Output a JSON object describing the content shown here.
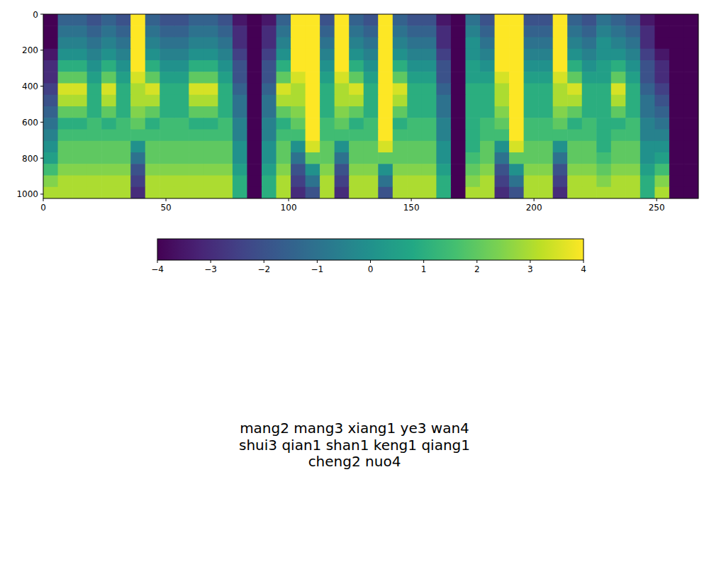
{
  "chart_data": {
    "type": "heatmap",
    "xlim": [
      0,
      267
    ],
    "ylim": [
      1024,
      0
    ],
    "xticks": [
      0,
      50,
      100,
      150,
      200,
      250
    ],
    "yticks": [
      0,
      200,
      400,
      600,
      800,
      1000
    ],
    "cells": [
      [
        -4,
        -1.5,
        -1.5,
        -2,
        -1.5,
        -2,
        4,
        -1.5,
        -2,
        -2,
        -1.5,
        -1.5,
        -2,
        -3.5,
        -4,
        -3.5,
        -1.5,
        4,
        4,
        -2,
        4,
        -1.5,
        -2,
        4,
        -1.5,
        -2,
        -2,
        -3.5,
        -4,
        -1,
        -2,
        4,
        4,
        -2,
        -2,
        4,
        -1.5,
        -2,
        -1,
        -1.5,
        -2,
        -3.5,
        -4,
        -4,
        -4
      ],
      [
        -4,
        -1,
        -1,
        -1.5,
        -1,
        -1.5,
        4,
        -1,
        -1.5,
        -1.5,
        -1,
        -1,
        -1.5,
        -3,
        -4,
        -3,
        -1,
        4,
        4,
        -1.5,
        4,
        -1,
        -1.5,
        4,
        -1,
        -1.5,
        -1.5,
        -3,
        -4,
        -0.5,
        -1.5,
        4,
        4,
        -1.5,
        -1.5,
        4,
        -1,
        -1.5,
        -0.5,
        -1,
        -1.5,
        -3,
        -4,
        -4,
        -4
      ],
      [
        -4,
        -0.5,
        -0.5,
        -1,
        -0.5,
        -1,
        4,
        -0.5,
        -1,
        -1,
        -0.5,
        -0.5,
        -1,
        -3,
        -4,
        -3,
        -0.5,
        4,
        4,
        -1,
        4,
        -0.5,
        -1,
        4,
        -0.5,
        -1,
        -1,
        -3,
        -4,
        0,
        -1,
        4,
        4,
        -1,
        -1,
        4,
        -0.5,
        -1,
        0,
        -0.5,
        -1,
        -3,
        -4,
        -4,
        -4
      ],
      [
        -3.5,
        0,
        0,
        -0.5,
        0,
        -0.5,
        4,
        0,
        -0.5,
        -0.5,
        0,
        0,
        -0.5,
        -2.5,
        -4,
        -2.5,
        0,
        4,
        4,
        -0.5,
        4,
        0,
        -0.5,
        4,
        0,
        -0.5,
        -0.5,
        -2.5,
        -4,
        0,
        -0.5,
        4,
        4,
        -0.5,
        -0.5,
        4,
        0,
        -0.5,
        0,
        0,
        -0.5,
        -2.5,
        -3.5,
        -4,
        -4
      ],
      [
        -3,
        1,
        1,
        0,
        1,
        0,
        4,
        1,
        0,
        0,
        1,
        1,
        0,
        -2,
        -4,
        -2,
        1,
        4,
        4,
        0,
        4,
        1,
        0,
        4,
        1,
        0,
        0,
        -2,
        -4,
        0.5,
        0,
        4,
        4,
        0,
        0,
        4,
        1,
        0,
        0.5,
        1,
        0,
        -2,
        -3,
        -4,
        -4
      ],
      [
        -3,
        2,
        2,
        0.5,
        2,
        0.5,
        3.5,
        2,
        0.5,
        0.5,
        2,
        2,
        0.5,
        -2,
        -4,
        -2,
        2,
        3.5,
        4,
        0.5,
        3.5,
        2,
        0.5,
        4,
        2,
        0.5,
        0.5,
        -2,
        -4,
        0.5,
        0.5,
        3.5,
        4,
        0.5,
        0.5,
        3.5,
        2,
        0.5,
        0.5,
        2,
        0.5,
        -2,
        -3,
        -4,
        -4
      ],
      [
        -2.5,
        3.5,
        3.5,
        1,
        3.5,
        1,
        3,
        3.5,
        1,
        1,
        3.5,
        3.5,
        1,
        -1.5,
        -4,
        -1.5,
        3.5,
        3,
        4,
        1,
        3,
        3.5,
        1,
        4,
        3.5,
        1,
        1,
        -1.5,
        -4,
        1,
        1,
        3,
        4,
        1,
        1,
        3,
        3.5,
        1,
        1,
        3.5,
        1,
        -1.5,
        -2.5,
        -4,
        -4
      ],
      [
        -2,
        3,
        3,
        1,
        3,
        1,
        3,
        3,
        1,
        1,
        3,
        3,
        1,
        -1,
        -4,
        -1,
        3,
        3,
        4,
        1,
        3,
        3,
        1,
        4,
        3,
        1,
        1,
        -1,
        -4,
        1,
        1,
        3,
        4,
        1,
        1,
        3,
        3,
        1,
        1,
        3,
        1,
        -1,
        -2,
        -4,
        -4
      ],
      [
        -1.5,
        2,
        2,
        1,
        2,
        1,
        2.5,
        2,
        1,
        1,
        2,
        2,
        1,
        -1,
        -4,
        -1,
        2,
        2.5,
        4,
        1,
        2.5,
        2,
        1,
        4,
        2,
        1,
        1,
        -1,
        -4,
        1,
        1,
        2.5,
        4,
        1,
        1,
        2.5,
        2,
        1,
        1,
        2,
        1,
        -1,
        -1.5,
        -4,
        -4
      ],
      [
        -1,
        1,
        1,
        1.5,
        1,
        1.5,
        2,
        1,
        1.5,
        1.5,
        1,
        1,
        1.5,
        -0.5,
        -4,
        -0.5,
        1,
        2,
        4,
        1.5,
        2,
        1,
        1.5,
        4,
        1,
        1.5,
        1.5,
        -0.5,
        -4,
        1,
        1.5,
        2,
        4,
        1.5,
        1.5,
        2,
        1,
        1.5,
        1,
        1,
        1.5,
        -0.5,
        -1,
        -4,
        -4
      ],
      [
        -0.5,
        1.5,
        1.5,
        1.5,
        1.5,
        1.5,
        1.5,
        1.5,
        1.5,
        1.5,
        1.5,
        1.5,
        1.5,
        -0.5,
        -4,
        -0.5,
        1.5,
        1.5,
        4,
        1.5,
        1.5,
        1.5,
        1.5,
        4,
        1.5,
        1.5,
        1.5,
        -0.5,
        -4,
        1,
        1.5,
        1.5,
        4,
        1.5,
        1.5,
        1.5,
        1.5,
        1.5,
        1,
        1.5,
        1.5,
        -0.5,
        -0.5,
        -4,
        -4
      ],
      [
        0,
        2,
        2,
        2,
        2,
        2,
        0,
        2,
        2,
        2,
        2,
        2,
        2,
        0,
        -4,
        0,
        2,
        0,
        3.5,
        2,
        0,
        2,
        2,
        3.5,
        2,
        2,
        2,
        0,
        -4,
        1,
        2,
        0,
        3.5,
        2,
        2,
        0,
        2,
        2,
        1,
        2,
        2,
        0,
        0,
        -4,
        -4
      ],
      [
        0.5,
        2,
        2,
        2,
        2,
        2,
        -1,
        2,
        2,
        2,
        2,
        2,
        2,
        0,
        -4,
        0,
        2,
        -1,
        2,
        2,
        -1,
        2,
        2,
        2,
        2,
        2,
        2,
        0,
        -4,
        1.5,
        2,
        -1,
        2,
        2,
        2,
        -1,
        2,
        2,
        1.5,
        2,
        2,
        0,
        0.5,
        -4,
        -4
      ],
      [
        1.5,
        2.5,
        2.5,
        2.5,
        2.5,
        2.5,
        -2,
        2.5,
        2.5,
        2.5,
        2.5,
        2.5,
        2.5,
        0.5,
        -4,
        0.5,
        2.5,
        -2,
        0,
        2.5,
        -2,
        2.5,
        2.5,
        0,
        2.5,
        2.5,
        2.5,
        0.5,
        -4,
        2,
        2.5,
        -2,
        0,
        2.5,
        2.5,
        -2,
        2.5,
        2.5,
        2,
        2.5,
        2.5,
        0.5,
        1.5,
        -4,
        -4
      ],
      [
        2.5,
        3,
        3,
        3,
        3,
        3,
        -2.5,
        3,
        3,
        3,
        3,
        3,
        3,
        1,
        -4,
        1,
        3,
        -2.5,
        -1,
        3,
        -2.5,
        3,
        3,
        -1,
        3,
        3,
        3,
        1,
        -4,
        2.5,
        3,
        -2.5,
        -1,
        3,
        3,
        -2.5,
        3,
        3,
        2.5,
        3,
        3,
        1,
        2.5,
        -4,
        -4
      ],
      [
        3,
        3,
        3,
        3,
        3,
        3,
        -3,
        3,
        3,
        3,
        3,
        3,
        3,
        1,
        -4,
        1,
        3,
        -3,
        -2,
        3,
        -3,
        3,
        3,
        -2,
        3,
        3,
        3,
        1,
        -4,
        3,
        3,
        -3,
        -2,
        3,
        3,
        -3,
        3,
        3,
        3,
        3,
        3,
        1,
        3,
        -4,
        -4
      ]
    ],
    "colorbar": {
      "range": [
        -4,
        4
      ],
      "ticks": [
        {
          "value": -4,
          "label": "−4"
        },
        {
          "value": -3,
          "label": "−3"
        },
        {
          "value": -2,
          "label": "−2"
        },
        {
          "value": -1,
          "label": "−1"
        },
        0,
        1,
        2,
        3,
        4
      ]
    },
    "annotations": [
      "mang2 mang3 xiang1 ye3 wan4",
      "shui3 qian1 shan1 keng1 qiang1",
      "cheng2 nuo4"
    ]
  }
}
